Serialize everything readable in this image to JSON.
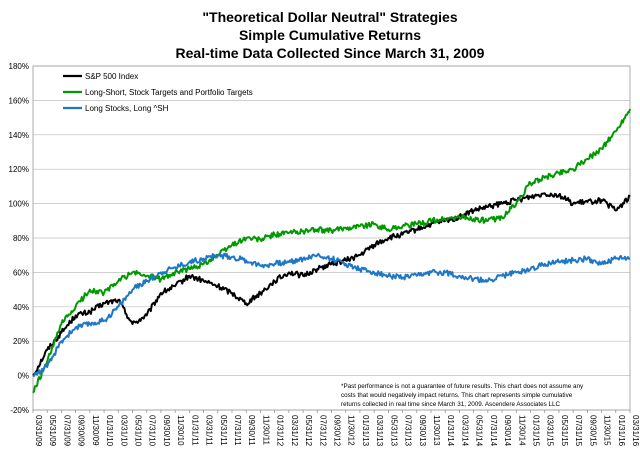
{
  "chart_data": {
    "type": "line",
    "title_lines": [
      "\"Theoretical Dollar Neutral\" Strategies",
      "Simple Cumulative Returns",
      "Real-time Data Collected Since March 31, 2009"
    ],
    "xlabel": "",
    "ylabel": "",
    "ylim": [
      -20,
      180
    ],
    "y_ticks": [
      "-20%",
      "0%",
      "20%",
      "40%",
      "60%",
      "80%",
      "100%",
      "120%",
      "140%",
      "160%",
      "180%"
    ],
    "x_ticks": [
      "03/31/09",
      "05/31/09",
      "07/31/09",
      "09/30/09",
      "11/30/09",
      "01/31/10",
      "03/31/10",
      "05/31/10",
      "07/31/10",
      "09/30/10",
      "11/30/10",
      "01/31/11",
      "03/31/11",
      "05/31/11",
      "07/31/11",
      "09/30/11",
      "11/30/11",
      "01/31/12",
      "03/31/12",
      "05/31/12",
      "07/31/12",
      "09/30/12",
      "11/30/12",
      "01/31/13",
      "03/31/13",
      "05/31/13",
      "07/31/13",
      "09/30/13",
      "11/30/13",
      "01/31/14",
      "03/31/14",
      "05/31/14",
      "07/31/14",
      "09/30/14",
      "11/30/14",
      "01/31/15",
      "03/31/15",
      "05/31/15",
      "07/31/15",
      "09/30/15",
      "11/30/15",
      "01/31/16",
      "03/31/16"
    ],
    "grid": true,
    "legend_position": "top-left",
    "series": [
      {
        "name": "S&P 500 Index",
        "color": "#000000",
        "x": [
          0,
          1,
          2,
          3,
          4,
          5,
          6,
          7,
          8,
          9,
          10,
          11,
          12,
          13,
          14,
          15,
          16,
          17,
          18,
          19,
          20,
          21,
          22,
          23,
          24,
          25,
          26,
          27,
          28,
          29,
          30,
          31,
          32,
          33,
          34,
          35,
          36,
          37,
          38,
          39,
          40,
          41,
          42
        ],
        "values": [
          0,
          15,
          25,
          35,
          37,
          42,
          44,
          30,
          35,
          48,
          52,
          58,
          55,
          52,
          48,
          42,
          48,
          55,
          60,
          58,
          62,
          65,
          67,
          70,
          76,
          80,
          82,
          85,
          88,
          90,
          92,
          96,
          98,
          100,
          102,
          104,
          106,
          105,
          100,
          101,
          102,
          96,
          104
        ]
      },
      {
        "name": "Long-Short, Stock Targets and Portfolio Targets",
        "color": "#009900",
        "x": [
          0,
          1,
          2,
          3,
          4,
          5,
          6,
          7,
          8,
          9,
          10,
          11,
          12,
          13,
          14,
          15,
          16,
          17,
          18,
          19,
          20,
          21,
          22,
          23,
          24,
          25,
          26,
          27,
          28,
          29,
          30,
          31,
          32,
          33,
          34,
          35,
          36,
          37,
          38,
          39,
          40,
          41,
          42
        ],
        "values": [
          -10,
          8,
          30,
          40,
          50,
          48,
          55,
          60,
          58,
          56,
          60,
          62,
          65,
          70,
          76,
          80,
          79,
          82,
          83,
          84,
          85,
          84,
          86,
          87,
          88,
          85,
          87,
          88,
          90,
          91,
          92,
          91,
          90,
          92,
          100,
          112,
          115,
          118,
          120,
          126,
          132,
          142,
          155
        ]
      },
      {
        "name": "Long Stocks, Long ^SH",
        "color": "#1F77C8",
        "x": [
          0,
          1,
          2,
          3,
          4,
          5,
          6,
          7,
          8,
          9,
          10,
          11,
          12,
          13,
          14,
          15,
          16,
          17,
          18,
          19,
          20,
          21,
          22,
          23,
          24,
          25,
          26,
          27,
          28,
          29,
          30,
          31,
          32,
          33,
          34,
          35,
          36,
          37,
          38,
          39,
          40,
          41,
          42
        ],
        "values": [
          0,
          5,
          20,
          28,
          30,
          32,
          40,
          50,
          55,
          60,
          63,
          66,
          68,
          70,
          69,
          67,
          64,
          65,
          66,
          68,
          70,
          68,
          65,
          62,
          60,
          58,
          57,
          58,
          60,
          60,
          58,
          56,
          55,
          58,
          60,
          62,
          65,
          66,
          67,
          68,
          65,
          68,
          68
        ]
      }
    ]
  },
  "footnote_lines": [
    "*Past performance is not a guarantee of future results.  This chart does not assume any",
    "costs that would negatively impact returns. This chart represents simple cumulative",
    "returns collected in real time since March 31, 2009. Ascendere Associates LLC"
  ]
}
